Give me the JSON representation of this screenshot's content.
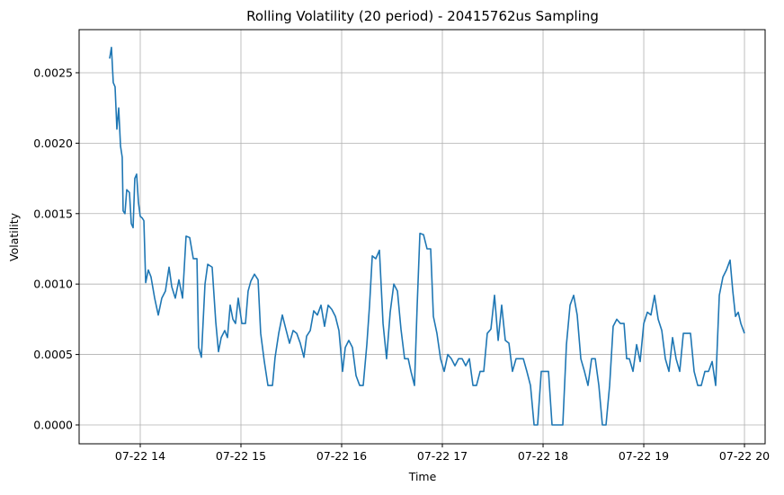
{
  "chart_data": {
    "type": "line",
    "title": "Rolling Volatility (20 period) - 20415762us Sampling",
    "x_label": "Time",
    "y_label": "Volatility",
    "x": [
      13.696,
      13.714,
      13.732,
      13.75,
      13.768,
      13.786,
      13.804,
      13.821,
      13.83,
      13.848,
      13.866,
      13.893,
      13.911,
      13.929,
      13.946,
      13.964,
      13.982,
      14.0,
      14.018,
      14.036,
      14.054,
      14.08,
      14.107,
      14.143,
      14.179,
      14.214,
      14.25,
      14.286,
      14.313,
      14.348,
      14.384,
      14.42,
      14.455,
      14.491,
      14.527,
      14.563,
      14.58,
      14.607,
      14.643,
      14.67,
      14.714,
      14.75,
      14.777,
      14.804,
      14.839,
      14.866,
      14.893,
      14.92,
      14.946,
      14.973,
      15.009,
      15.045,
      15.071,
      15.098,
      15.134,
      15.17,
      15.196,
      15.232,
      15.268,
      15.313,
      15.339,
      15.375,
      15.411,
      15.446,
      15.482,
      15.518,
      15.554,
      15.589,
      15.625,
      15.652,
      15.688,
      15.723,
      15.759,
      15.795,
      15.83,
      15.866,
      15.902,
      15.938,
      15.973,
      16.009,
      16.036,
      16.071,
      16.107,
      16.143,
      16.179,
      16.214,
      16.25,
      16.277,
      16.304,
      16.339,
      16.375,
      16.411,
      16.446,
      16.482,
      16.518,
      16.554,
      16.589,
      16.625,
      16.661,
      16.688,
      16.723,
      16.75,
      16.777,
      16.813,
      16.848,
      16.884,
      16.911,
      16.946,
      16.982,
      17.018,
      17.054,
      17.089,
      17.125,
      17.161,
      17.196,
      17.232,
      17.268,
      17.304,
      17.339,
      17.375,
      17.411,
      17.446,
      17.482,
      17.518,
      17.554,
      17.589,
      17.625,
      17.661,
      17.696,
      17.732,
      17.768,
      17.804,
      17.839,
      17.875,
      17.911,
      17.946,
      17.982,
      18.018,
      18.054,
      18.089,
      18.125,
      18.161,
      18.196,
      18.232,
      18.268,
      18.304,
      18.339,
      18.375,
      18.411,
      18.446,
      18.482,
      18.518,
      18.554,
      18.589,
      18.625,
      18.661,
      18.696,
      18.732,
      18.768,
      18.804,
      18.83,
      18.857,
      18.893,
      18.929,
      18.964,
      19.0,
      19.036,
      19.071,
      19.107,
      19.143,
      19.179,
      19.214,
      19.25,
      19.286,
      19.321,
      19.357,
      19.393,
      19.429,
      19.464,
      19.5,
      19.536,
      19.571,
      19.607,
      19.643,
      19.679,
      19.714,
      19.75,
      19.786,
      19.821,
      19.857,
      19.884,
      19.911,
      19.938,
      19.964,
      20.0
    ],
    "series": [
      {
        "name": "Volatility",
        "color": "#1f77b4",
        "values": [
          0.0026,
          0.00268,
          0.00243,
          0.0024,
          0.0021,
          0.00225,
          0.00198,
          0.0019,
          0.00152,
          0.0015,
          0.00167,
          0.00165,
          0.00143,
          0.0014,
          0.00175,
          0.00178,
          0.00158,
          0.00148,
          0.00147,
          0.00145,
          0.00101,
          0.0011,
          0.00105,
          0.0009,
          0.00078,
          0.0009,
          0.00095,
          0.00112,
          0.00098,
          0.0009,
          0.00103,
          0.0009,
          0.00134,
          0.00133,
          0.00118,
          0.00118,
          0.00055,
          0.00048,
          0.001,
          0.00114,
          0.00112,
          0.00073,
          0.00052,
          0.00062,
          0.00067,
          0.00062,
          0.00085,
          0.00075,
          0.00072,
          0.0009,
          0.00072,
          0.00072,
          0.00095,
          0.00102,
          0.00107,
          0.00103,
          0.00065,
          0.00045,
          0.00028,
          0.00028,
          0.00048,
          0.00065,
          0.00078,
          0.00068,
          0.00058,
          0.00067,
          0.00065,
          0.00058,
          0.00048,
          0.00063,
          0.00067,
          0.00081,
          0.00078,
          0.00085,
          0.0007,
          0.00085,
          0.00082,
          0.00077,
          0.00067,
          0.00038,
          0.00055,
          0.0006,
          0.00055,
          0.00035,
          0.00028,
          0.00028,
          0.00057,
          0.00085,
          0.0012,
          0.00118,
          0.00124,
          0.00072,
          0.00047,
          0.0008,
          0.001,
          0.00095,
          0.00068,
          0.00047,
          0.00047,
          0.00038,
          0.00028,
          0.00085,
          0.00136,
          0.00135,
          0.00125,
          0.00125,
          0.00077,
          0.00065,
          0.00047,
          0.00038,
          0.0005,
          0.00047,
          0.00042,
          0.00047,
          0.00047,
          0.00042,
          0.00047,
          0.00028,
          0.00028,
          0.00038,
          0.00038,
          0.00065,
          0.00068,
          0.00092,
          0.0006,
          0.00085,
          0.0006,
          0.00058,
          0.00038,
          0.00047,
          0.00047,
          0.00047,
          0.00038,
          0.00028,
          0.0,
          0.0,
          0.00038,
          0.00038,
          0.00038,
          0.0,
          0.0,
          0.0,
          0.0,
          0.00057,
          0.00085,
          0.00092,
          0.00078,
          0.00047,
          0.00038,
          0.00028,
          0.00047,
          0.00047,
          0.00028,
          0.0,
          0.0,
          0.00028,
          0.0007,
          0.00075,
          0.00072,
          0.00072,
          0.00047,
          0.00047,
          0.00038,
          0.00057,
          0.00045,
          0.00072,
          0.0008,
          0.00078,
          0.00092,
          0.00075,
          0.00067,
          0.00047,
          0.00038,
          0.00062,
          0.00047,
          0.00038,
          0.00065,
          0.00065,
          0.00065,
          0.00038,
          0.00028,
          0.00028,
          0.00038,
          0.00038,
          0.00045,
          0.00028,
          0.00092,
          0.00105,
          0.0011,
          0.00117,
          0.00095,
          0.00077,
          0.0008,
          0.00072,
          0.00065
        ]
      }
    ],
    "xlim": [
      13.393,
      20.205
    ],
    "xticks": [
      {
        "value": 14,
        "label": "07-22 14"
      },
      {
        "value": 15,
        "label": "07-22 15"
      },
      {
        "value": 16,
        "label": "07-22 16"
      },
      {
        "value": 17,
        "label": "07-22 17"
      },
      {
        "value": 18,
        "label": "07-22 18"
      },
      {
        "value": 19,
        "label": "07-22 19"
      },
      {
        "value": 20,
        "label": "07-22 20"
      }
    ],
    "ylim": [
      -0.000134,
      0.002806
    ],
    "yticks": [
      {
        "value": 0,
        "label": "0.0000"
      },
      0.0005,
      {
        "value": 0.001,
        "label": "0.0010"
      },
      0.0015,
      {
        "value": 0.002,
        "label": "0.0020"
      },
      0.0025
    ],
    "grid": true
  }
}
